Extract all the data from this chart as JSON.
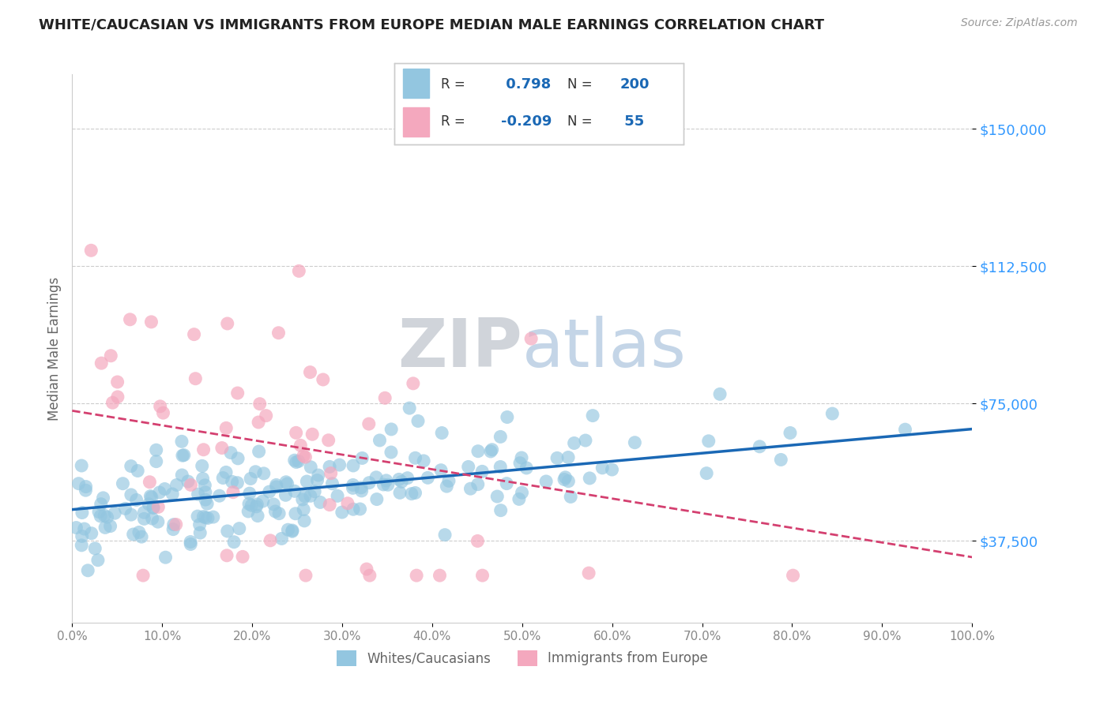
{
  "title": "WHITE/CAUCASIAN VS IMMIGRANTS FROM EUROPE MEDIAN MALE EARNINGS CORRELATION CHART",
  "source": "Source: ZipAtlas.com",
  "ylabel": "Median Male Earnings",
  "xlim": [
    0,
    1
  ],
  "ylim": [
    15000,
    165000
  ],
  "yticks": [
    37500,
    75000,
    112500,
    150000
  ],
  "ytick_labels": [
    "$37,500",
    "$75,000",
    "$112,500",
    "$150,000"
  ],
  "xtick_positions": [
    0.0,
    0.1,
    0.2,
    0.3,
    0.4,
    0.5,
    0.6,
    0.7,
    0.8,
    0.9,
    1.0
  ],
  "xtick_labels": [
    "0.0%",
    "10.0%",
    "20.0%",
    "30.0%",
    "40.0%",
    "50.0%",
    "60.0%",
    "70.0%",
    "80.0%",
    "90.0%",
    "100.0%"
  ],
  "blue_color": "#93c6e0",
  "pink_color": "#f4a8be",
  "blue_line_color": "#1a68b5",
  "pink_line_color": "#d44070",
  "R_blue": 0.798,
  "N_blue": 200,
  "R_pink": -0.209,
  "N_pink": 55,
  "watermark_zip": "ZIP",
  "watermark_atlas": "atlas",
  "legend_label_blue": "Whites/Caucasians",
  "legend_label_pink": "Immigrants from Europe",
  "title_color": "#222222",
  "axis_label_color": "#666666",
  "tick_color_right": "#3399ff",
  "tick_color_bottom": "#888888",
  "grid_color": "#cccccc",
  "background_color": "#ffffff",
  "blue_trend_x0": 0.0,
  "blue_trend_y0": 46000,
  "blue_trend_x1": 1.0,
  "blue_trend_y1": 68000,
  "pink_trend_x0": 0.0,
  "pink_trend_y0": 73000,
  "pink_trend_x1": 1.0,
  "pink_trend_y1": 33000
}
